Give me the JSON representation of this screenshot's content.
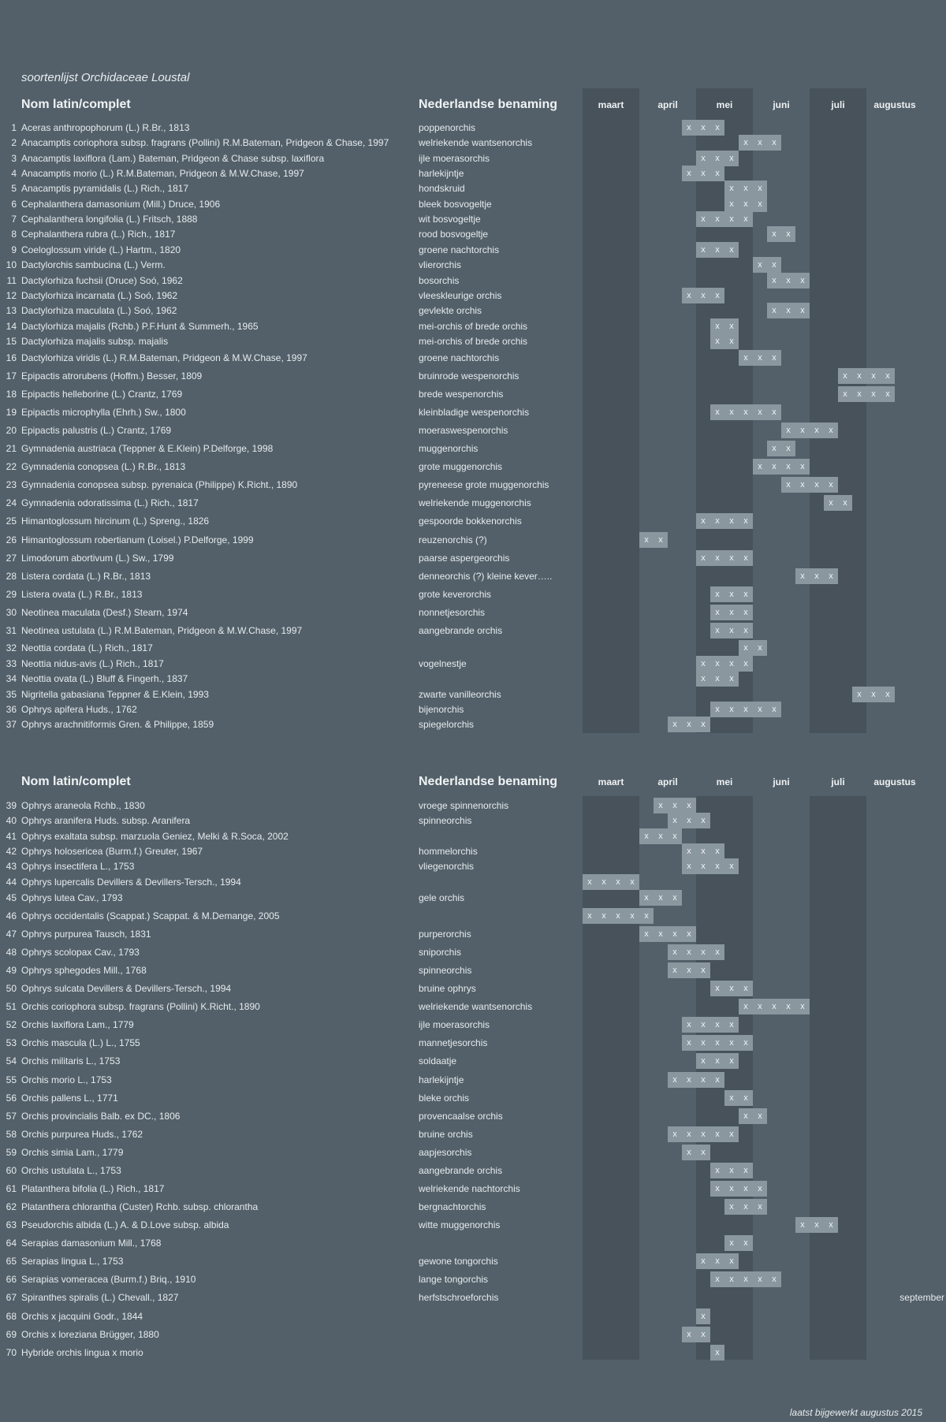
{
  "title": "soortenlijst Orchidaceae Loustal",
  "footer": "laatst bijgewerkt augustus 2015",
  "headers": {
    "latin": "Nom latin/complet",
    "dutch": "Nederlandse benaming",
    "months": [
      "maart",
      "april",
      "mei",
      "juni",
      "juli",
      "augustus"
    ]
  },
  "mark": "x",
  "sections": [
    {
      "rows": [
        {
          "num": "1",
          "latin": "Aceras anthropophorum (L.) R.Br., 1813",
          "dutch": "poppenorchis",
          "cells": [
            7,
            8,
            9
          ]
        },
        {
          "num": "2",
          "latin": "Anacamptis coriophora subsp. fragrans (Pollini) R.M.Bateman, Pridgeon & Chase, 1997",
          "dutch": "welriekende wantsenorchis",
          "cells": [
            11,
            12,
            13
          ]
        },
        {
          "num": "3",
          "latin": "Anacamptis laxiflora (Lam.) Bateman, Pridgeon & Chase subsp. laxiflora",
          "dutch": "ijle moerasorchis",
          "cells": [
            8,
            9,
            10
          ]
        },
        {
          "num": "4",
          "latin": "Anacamptis morio (L.) R.M.Bateman, Pridgeon & M.W.Chase, 1997",
          "dutch": "harlekijntje",
          "cells": [
            7,
            8,
            9
          ]
        },
        {
          "num": "5",
          "latin": "Anacamptis pyramidalis (L.) Rich., 1817",
          "dutch": "hondskruid",
          "cells": [
            10,
            11,
            12
          ]
        },
        {
          "num": "6",
          "latin": "Cephalanthera damasonium (Mill.) Druce, 1906",
          "dutch": "bleek bosvogeltje",
          "cells": [
            10,
            11,
            12
          ]
        },
        {
          "num": "7",
          "latin": "Cephalanthera longifolia (L.) Fritsch, 1888",
          "dutch": "wit bosvogeltje",
          "cells": [
            8,
            9,
            10,
            11
          ]
        },
        {
          "num": "8",
          "latin": "Cephalanthera rubra (L.) Rich., 1817",
          "dutch": "rood bosvogeltje",
          "cells": [
            13,
            14
          ]
        },
        {
          "num": "9",
          "latin": "Coeloglossum viride (L.) Hartm., 1820",
          "dutch": "groene nachtorchis",
          "cells": [
            8,
            9,
            10
          ]
        },
        {
          "num": "10",
          "latin": "Dactylorchis sambucina (L.) Verm.",
          "dutch": "vlierorchis",
          "cells": [
            12,
            13
          ]
        },
        {
          "num": "11",
          "latin": "Dactylorhiza fuchsii (Druce) Soó, 1962",
          "dutch": "bosorchis",
          "cells": [
            13,
            14,
            15
          ]
        },
        {
          "num": "12",
          "latin": "Dactylorhiza incarnata (L.) Soó, 1962",
          "dutch": "vleeskleurige orchis",
          "cells": [
            7,
            8,
            9
          ]
        },
        {
          "num": "13",
          "latin": "Dactylorhiza maculata (L.) Soó, 1962",
          "dutch": "gevlekte orchis",
          "cells": [
            13,
            14,
            15
          ]
        },
        {
          "num": "14",
          "latin": "Dactylorhiza majalis (Rchb.) P.F.Hunt & Summerh., 1965",
          "dutch": "mei-orchis of brede orchis",
          "cells": [
            9,
            10
          ]
        },
        {
          "num": "15",
          "latin": "Dactylorhiza majalis subsp. majalis",
          "dutch": "mei-orchis of brede orchis",
          "cells": [
            9,
            10
          ]
        },
        {
          "num": "16",
          "latin": "Dactylorhiza viridis (L.) R.M.Bateman, Pridgeon & M.W.Chase, 1997",
          "dutch": "groene nachtorchis",
          "cells": [
            11,
            12,
            13
          ]
        },
        {
          "num": "17",
          "latin": "Epipactis atrorubens (Hoffm.) Besser, 1809",
          "dutch": "bruinrode wespenorchis",
          "cells": [
            18,
            19,
            20,
            21
          ]
        },
        {
          "num": "18",
          "latin": "Epipactis helleborine (L.) Crantz, 1769",
          "dutch": "brede wespenorchis",
          "cells": [
            18,
            19,
            20,
            21
          ]
        },
        {
          "num": "19",
          "latin": "Epipactis microphylla (Ehrh.) Sw., 1800",
          "dutch": "kleinbladige wespenorchis",
          "cells": [
            9,
            10,
            11,
            12,
            13
          ]
        },
        {
          "num": "20",
          "latin": "Epipactis palustris (L.) Crantz, 1769",
          "dutch": "moeraswespenorchis",
          "cells": [
            14,
            15,
            16,
            17
          ]
        },
        {
          "num": "21",
          "latin": "Gymnadenia austriaca (Teppner & E.Klein) P.Delforge, 1998",
          "dutch": "muggenorchis",
          "cells": [
            13,
            14
          ]
        },
        {
          "num": "22",
          "latin": "Gymnadenia conopsea (L.) R.Br., 1813",
          "dutch": "grote muggenorchis",
          "cells": [
            12,
            13,
            14,
            15
          ]
        },
        {
          "num": "23",
          "latin": "Gymnadenia conopsea subsp. pyrenaica (Philippe) K.Richt., 1890",
          "dutch": "pyreneese grote muggenorchis",
          "cells": [
            14,
            15,
            16,
            17
          ]
        },
        {
          "num": "24",
          "latin": "Gymnadenia odoratissima (L.) Rich., 1817",
          "dutch": "welriekende muggenorchis",
          "cells": [
            17,
            18
          ]
        },
        {
          "num": "25",
          "latin": "Himantoglossum hircinum (L.) Spreng., 1826",
          "dutch": "gespoorde bokkenorchis",
          "cells": [
            8,
            9,
            10,
            11
          ]
        },
        {
          "num": "26",
          "latin": "Himantoglossum robertianum (Loisel.) P.Delforge, 1999",
          "dutch": "reuzenorchis (?)",
          "cells": [
            4,
            5
          ]
        },
        {
          "num": "27",
          "latin": "Limodorum abortivum (L.) Sw., 1799",
          "dutch": "paarse aspergeorchis",
          "cells": [
            8,
            9,
            10,
            11
          ]
        },
        {
          "num": "28",
          "latin": "Listera cordata (L.) R.Br., 1813",
          "dutch": "denneorchis (?) kleine kever…..",
          "cells": [
            15,
            16,
            17
          ]
        },
        {
          "num": "29",
          "latin": "Listera ovata (L.) R.Br., 1813",
          "dutch": "grote keverorchis",
          "cells": [
            9,
            10,
            11
          ]
        },
        {
          "num": "30",
          "latin": "Neotinea maculata (Desf.) Stearn, 1974",
          "dutch": "nonnetjesorchis",
          "cells": [
            9,
            10,
            11
          ]
        },
        {
          "num": "31",
          "latin": "Neotinea ustulata (L.) R.M.Bateman, Pridgeon & M.W.Chase, 1997",
          "dutch": "aangebrande orchis",
          "cells": [
            9,
            10,
            11
          ]
        },
        {
          "num": "32",
          "latin": "Neottia cordata (L.) Rich., 1817",
          "dutch": "",
          "cells": [
            11,
            12
          ]
        },
        {
          "num": "33",
          "latin": "Neottia nidus-avis (L.) Rich., 1817",
          "dutch": "vogelnestje",
          "cells": [
            8,
            9,
            10,
            11
          ]
        },
        {
          "num": "34",
          "latin": "Neottia ovata (L.) Bluff & Fingerh., 1837",
          "dutch": "",
          "cells": [
            8,
            9,
            10
          ]
        },
        {
          "num": "35",
          "latin": "Nigritella gabasiana Teppner & E.Klein, 1993",
          "dutch": "zwarte vanilleorchis",
          "cells": [
            19,
            20,
            21
          ]
        },
        {
          "num": "36",
          "latin": "Ophrys apifera Huds., 1762",
          "dutch": "bijenorchis",
          "cells": [
            9,
            10,
            11,
            12,
            13
          ]
        },
        {
          "num": "37",
          "latin": "Ophrys arachnitiformis Gren. & Philippe, 1859",
          "dutch": "spiegelorchis",
          "cells": [
            6,
            7,
            8
          ]
        }
      ]
    },
    {
      "rows": [
        {
          "num": "39",
          "latin": "Ophrys araneola Rchb., 1830",
          "dutch": "vroege spinnenorchis",
          "cells": [
            5,
            6,
            7
          ]
        },
        {
          "num": "40",
          "latin": "Ophrys aranifera Huds. subsp. Aranifera",
          "dutch": "spinneorchis",
          "cells": [
            6,
            7,
            8
          ]
        },
        {
          "num": "41",
          "latin": "Ophrys exaltata subsp. marzuola Geniez, Melki & R.Soca, 2002",
          "dutch": "",
          "cells": [
            4,
            5,
            6
          ]
        },
        {
          "num": "42",
          "latin": "Ophrys holosericea (Burm.f.) Greuter, 1967",
          "dutch": "hommelorchis",
          "cells": [
            7,
            8,
            9
          ]
        },
        {
          "num": "43",
          "latin": "Ophrys insectifera L., 1753",
          "dutch": "vliegenorchis",
          "cells": [
            7,
            8,
            9,
            10
          ]
        },
        {
          "num": "44",
          "latin": "Ophrys lupercalis Devillers & Devillers-Tersch., 1994",
          "dutch": "",
          "cells": [
            0,
            1,
            2,
            3
          ]
        },
        {
          "num": "45",
          "latin": "Ophrys lutea Cav., 1793",
          "dutch": "gele orchis",
          "cells": [
            4,
            5,
            6
          ]
        },
        {
          "num": "46",
          "latin": "Ophrys occidentalis (Scappat.) Scappat. & M.Demange, 2005",
          "dutch": "",
          "cells": [
            0,
            1,
            2,
            3,
            4
          ]
        },
        {
          "num": "47",
          "latin": "Ophrys purpurea Tausch, 1831",
          "dutch": "purperorchis",
          "cells": [
            4,
            5,
            6,
            7
          ]
        },
        {
          "num": "48",
          "latin": "Ophrys scolopax Cav., 1793",
          "dutch": "sniporchis",
          "cells": [
            6,
            7,
            8,
            9
          ]
        },
        {
          "num": "49",
          "latin": "Ophrys sphegodes Mill., 1768",
          "dutch": "spinneorchis",
          "cells": [
            6,
            7,
            8
          ]
        },
        {
          "num": "50",
          "latin": "Ophrys sulcata Devillers & Devillers-Tersch., 1994",
          "dutch": "bruine ophrys",
          "cells": [
            9,
            10,
            11
          ]
        },
        {
          "num": "51",
          "latin": "Orchis coriophora subsp. fragrans (Pollini) K.Richt., 1890",
          "dutch": "welriekende wantsenorchis",
          "cells": [
            11,
            12,
            13,
            14,
            15
          ]
        },
        {
          "num": "52",
          "latin": "Orchis laxiflora Lam., 1779",
          "dutch": "ijle moerasorchis",
          "cells": [
            7,
            8,
            9,
            10
          ]
        },
        {
          "num": "53",
          "latin": "Orchis mascula (L.) L., 1755",
          "dutch": "mannetjesorchis",
          "cells": [
            7,
            8,
            9,
            10,
            11
          ]
        },
        {
          "num": "54",
          "latin": "Orchis militaris L., 1753",
          "dutch": "soldaatje",
          "cells": [
            8,
            9,
            10
          ]
        },
        {
          "num": "55",
          "latin": "Orchis morio L., 1753",
          "dutch": "harlekijntje",
          "cells": [
            6,
            7,
            8,
            9
          ]
        },
        {
          "num": "56",
          "latin": "Orchis pallens L., 1771",
          "dutch": "bleke orchis",
          "cells": [
            10,
            11
          ]
        },
        {
          "num": "57",
          "latin": "Orchis provincialis Balb. ex DC., 1806",
          "dutch": "provencaalse orchis",
          "cells": [
            11,
            12
          ]
        },
        {
          "num": "58",
          "latin": "Orchis purpurea Huds., 1762",
          "dutch": "bruine orchis",
          "cells": [
            6,
            7,
            8,
            9,
            10
          ]
        },
        {
          "num": "59",
          "latin": "Orchis simia Lam., 1779",
          "dutch": "aapjesorchis",
          "cells": [
            7,
            8
          ]
        },
        {
          "num": "60",
          "latin": "Orchis ustulata L., 1753",
          "dutch": "aangebrande orchis",
          "cells": [
            9,
            10,
            11
          ]
        },
        {
          "num": "61",
          "latin": "Platanthera bifolia (L.) Rich., 1817",
          "dutch": "welriekende nachtorchis",
          "cells": [
            9,
            10,
            11,
            12
          ]
        },
        {
          "num": "62",
          "latin": "Platanthera chlorantha (Custer) Rchb. subsp. chlorantha",
          "dutch": "bergnachtorchis",
          "cells": [
            10,
            11,
            12
          ]
        },
        {
          "num": "63",
          "latin": "Pseudorchis albida (L.) A. & D.Love subsp. albida",
          "dutch": "witte muggenorchis",
          "cells": [
            15,
            16,
            17
          ]
        },
        {
          "num": "64",
          "latin": "Serapias damasonium Mill., 1768",
          "dutch": "",
          "cells": [
            10,
            11
          ]
        },
        {
          "num": "65",
          "latin": "Serapias lingua L., 1753",
          "dutch": "gewone tongorchis",
          "cells": [
            8,
            9,
            10
          ]
        },
        {
          "num": "66",
          "latin": "Serapias vomeracea (Burm.f.) Briq., 1910",
          "dutch": "lange tongorchis",
          "cells": [
            9,
            10,
            11,
            12,
            13
          ]
        },
        {
          "num": "67",
          "latin": "Spiranthes spiralis (L.) Chevall., 1827",
          "dutch": "herfstschroeforchis",
          "cells": [],
          "extra": "september"
        },
        {
          "num": "68",
          "latin": "Orchis x jacquini Godr., 1844",
          "dutch": "",
          "cells": [
            8
          ]
        },
        {
          "num": "69",
          "latin": "Orchis x loreziana Brügger, 1880",
          "dutch": "",
          "cells": [
            7,
            8
          ]
        },
        {
          "num": "70",
          "latin": "Hybride orchis lingua x morio",
          "dutch": "",
          "cells": [
            9
          ]
        }
      ]
    }
  ]
}
